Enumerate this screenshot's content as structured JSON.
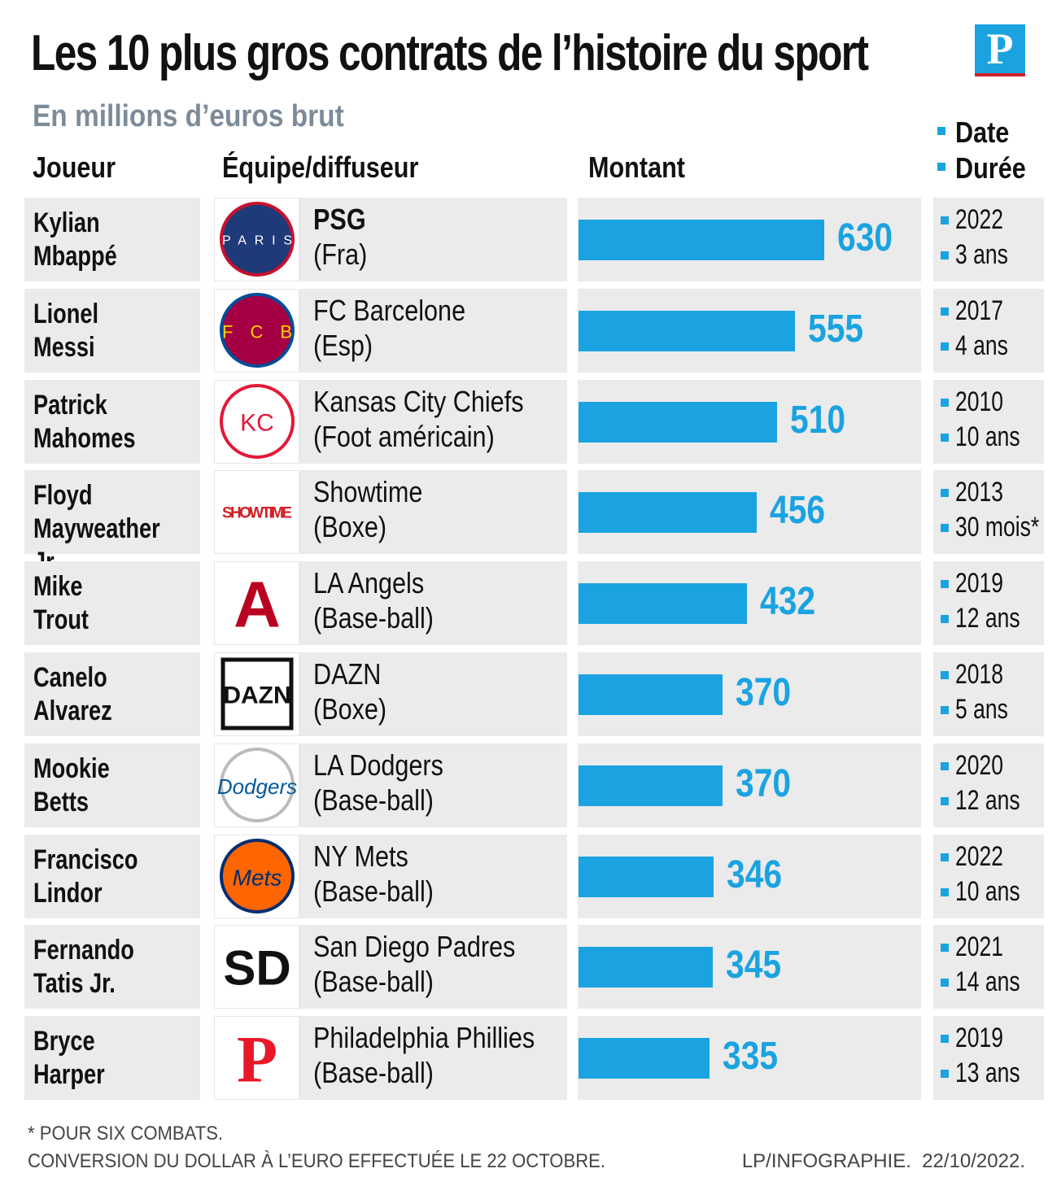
{
  "chart_data": {
    "type": "bar",
    "title": "Les 10 plus gros contrats de l’histoire du sport",
    "subtitle": "En millions d’euros brut",
    "brand": "P",
    "headers": {
      "player": "Joueur",
      "team": "Équipe/diffuseur",
      "amount": "Montant",
      "date": "Date",
      "duration": "Durée"
    },
    "categories": [
      "Kylian\nMbappé",
      "Lionel\nMessi",
      "Patrick\nMahomes",
      "Floyd\nMayweather Jr.",
      "Mike\nTrout",
      "Canelo\nAlvarez",
      "Mookie\nBetts",
      "Francisco\nLindor",
      "Fernando\nTatis Jr.",
      "Bryce\nHarper"
    ],
    "teams": [
      "PSG",
      "FC Barcelone",
      "Kansas City Chiefs",
      "Showtime",
      "LA Angels",
      "DAZN",
      "LA Dodgers",
      "NY Mets",
      "San Diego Padres",
      "Philadelphia Phillies"
    ],
    "leagues": [
      "(Fra)",
      "(Esp)",
      "(Foot américain)",
      "(Boxe)",
      "(Base-ball)",
      "(Boxe)",
      "(Base-ball)",
      "(Base-ball)",
      "(Base-ball)",
      "(Base-ball)"
    ],
    "logos": [
      "PARIS",
      "FCB",
      "KC",
      "SHOWTIME",
      "A",
      "DAZN",
      "Dodgers",
      "Mets",
      "SD",
      "P"
    ],
    "values": [
      630,
      555,
      510,
      456,
      432,
      370,
      370,
      346,
      345,
      335
    ],
    "dates": [
      "2022",
      "2017",
      "2010",
      "2013",
      "2019",
      "2018",
      "2020",
      "2022",
      "2021",
      "2019"
    ],
    "durations": [
      "3 ans",
      "4 ans",
      "10 ans",
      "30 mois*",
      "12 ans",
      "5 ans",
      "12 ans",
      "10 ans",
      "14 ans",
      "13 ans"
    ],
    "color": "#1aa3e0",
    "footnote": "* POUR SIX COMBATS.",
    "note": "CONVERSION DU DOLLAR À L’EURO EFFECTUÉE LE 22 OCTOBRE.",
    "source": "LP/INFOGRAPHIE.  22/10/2022."
  }
}
